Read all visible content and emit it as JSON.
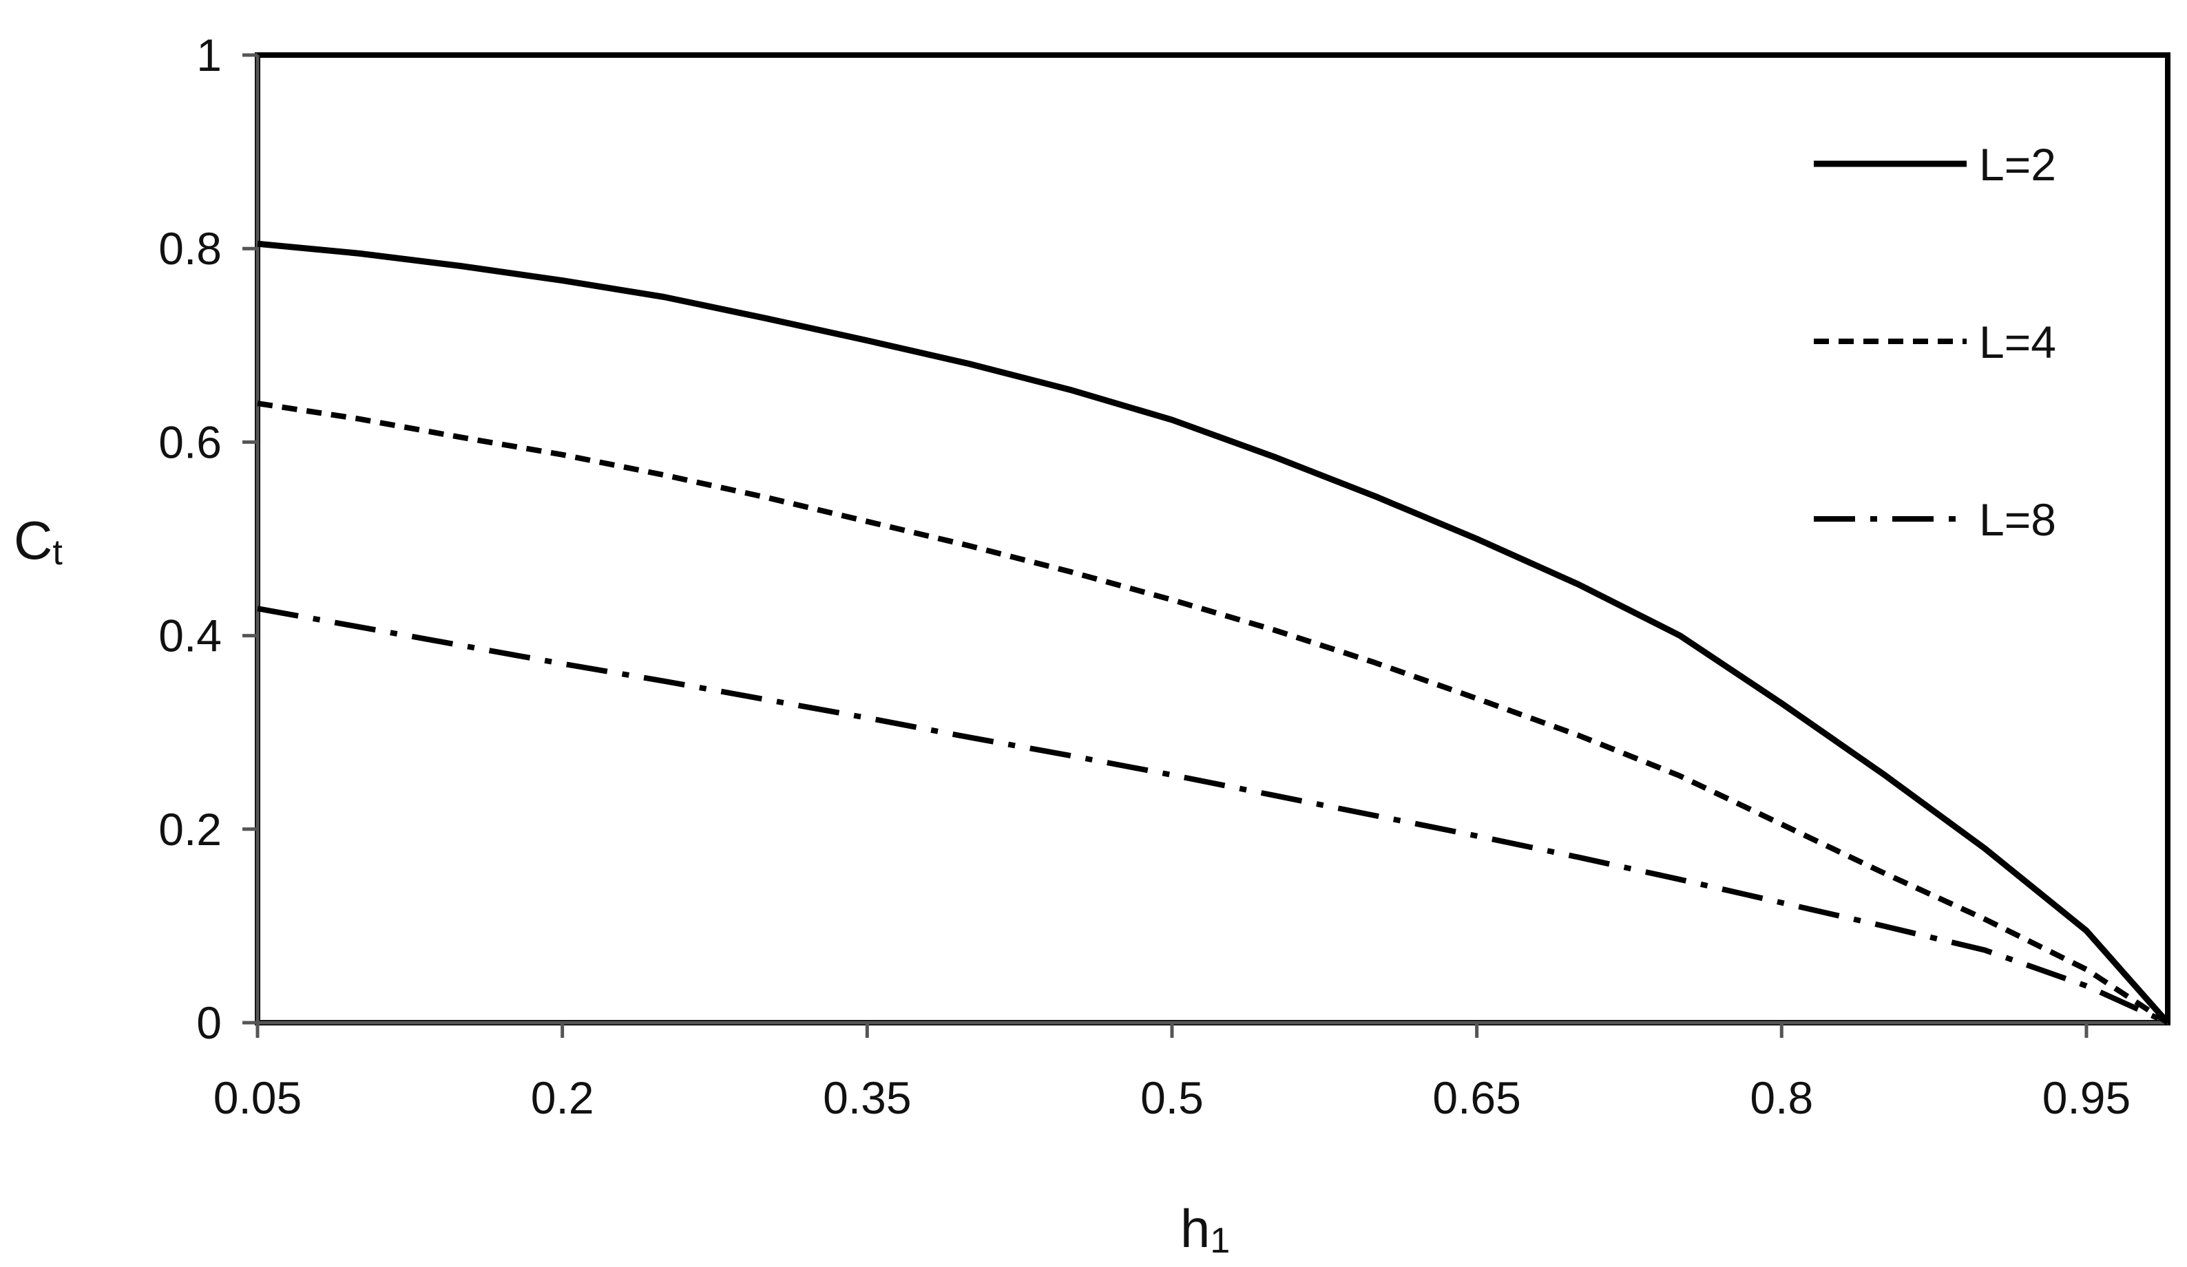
{
  "chart_data": {
    "type": "line",
    "title": "",
    "xlabel": "h",
    "xlabel_subscript": "1",
    "ylabel": "C",
    "ylabel_subscript": "t",
    "xlim": [
      0.05,
      0.99
    ],
    "ylim": [
      0,
      1
    ],
    "x_ticks": [
      0.05,
      0.2,
      0.35,
      0.5,
      0.65,
      0.8,
      0.95
    ],
    "x_tick_labels": [
      "0.05",
      "0.2",
      "0.35",
      "0.5",
      "0.65",
      "0.8",
      "0.95"
    ],
    "y_ticks": [
      0,
      0.2,
      0.4,
      0.6,
      0.8,
      1
    ],
    "y_tick_labels": [
      "0",
      "0.2",
      "0.4",
      "0.6",
      "0.8",
      "1"
    ],
    "grid": false,
    "legend_position": "top-right",
    "series": [
      {
        "name": "L=2",
        "style": "solid",
        "x": [
          0.05,
          0.1,
          0.15,
          0.2,
          0.25,
          0.3,
          0.35,
          0.4,
          0.45,
          0.5,
          0.55,
          0.6,
          0.65,
          0.7,
          0.75,
          0.8,
          0.85,
          0.9,
          0.95,
          0.99
        ],
        "y": [
          0.805,
          0.795,
          0.782,
          0.767,
          0.75,
          0.728,
          0.705,
          0.681,
          0.654,
          0.623,
          0.585,
          0.544,
          0.5,
          0.453,
          0.4,
          0.33,
          0.257,
          0.18,
          0.095,
          0.0
        ]
      },
      {
        "name": "L=4",
        "style": "dashed",
        "x": [
          0.05,
          0.1,
          0.15,
          0.2,
          0.25,
          0.3,
          0.35,
          0.4,
          0.45,
          0.5,
          0.55,
          0.6,
          0.65,
          0.7,
          0.75,
          0.8,
          0.85,
          0.9,
          0.95,
          0.99
        ],
        "y": [
          0.64,
          0.624,
          0.605,
          0.587,
          0.566,
          0.543,
          0.518,
          0.493,
          0.466,
          0.437,
          0.406,
          0.372,
          0.335,
          0.297,
          0.255,
          0.205,
          0.155,
          0.107,
          0.055,
          0.0
        ]
      },
      {
        "name": "L=8",
        "style": "dash-dot",
        "x": [
          0.05,
          0.1,
          0.15,
          0.2,
          0.25,
          0.3,
          0.35,
          0.4,
          0.45,
          0.5,
          0.55,
          0.6,
          0.65,
          0.7,
          0.75,
          0.8,
          0.85,
          0.9,
          0.95,
          0.99
        ],
        "y": [
          0.428,
          0.409,
          0.39,
          0.371,
          0.353,
          0.334,
          0.315,
          0.295,
          0.276,
          0.256,
          0.235,
          0.214,
          0.193,
          0.171,
          0.148,
          0.124,
          0.1,
          0.075,
          0.038,
          0.0
        ]
      }
    ]
  },
  "colors": {
    "line": "#000000",
    "axis": "#555555",
    "text": "#111111",
    "background": "#ffffff"
  }
}
